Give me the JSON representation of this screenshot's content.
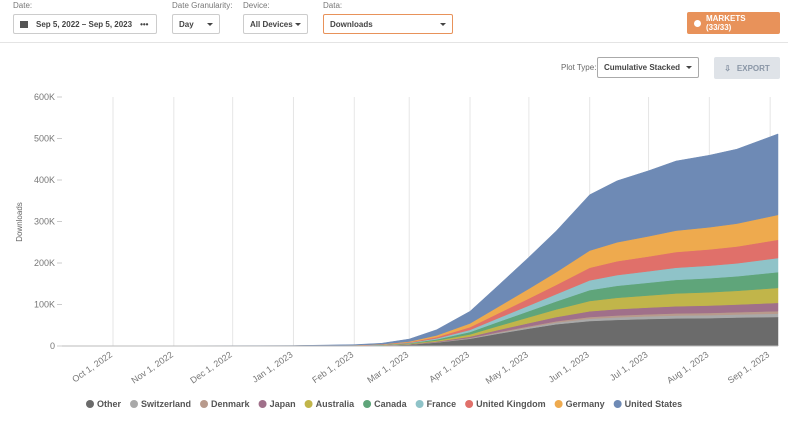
{
  "filters": {
    "date": {
      "label": "Date:",
      "value": "Sep 5, 2022 – Sep 5, 2023",
      "more": "•••"
    },
    "granularity": {
      "label": "Date Granularity:",
      "value": "Day"
    },
    "device": {
      "label": "Device:",
      "value": "All Devices"
    },
    "data": {
      "label": "Data:",
      "value": "Downloads"
    }
  },
  "markets_button": "MARKETS (33/33)",
  "plot_type": {
    "label": "Plot Type:",
    "value": "Cumulative Stacked"
  },
  "export_button": "EXPORT",
  "chart_data": {
    "type": "stacked_area",
    "y_label": "Downloads",
    "grid": "x",
    "x": [
      "2022-09-05",
      "2023-01-01",
      "2023-02-01",
      "2023-02-15",
      "2023-03-01",
      "2023-03-15",
      "2023-04-01",
      "2023-04-15",
      "2023-05-01",
      "2023-05-15",
      "2023-06-01",
      "2023-06-15",
      "2023-07-01",
      "2023-07-15",
      "2023-08-01",
      "2023-08-15",
      "2023-09-05"
    ],
    "xlim": [
      "2022-09-05",
      "2023-09-05"
    ],
    "xticks": [
      {
        "value": "2022-10-01",
        "label": "Oct 1, 2022"
      },
      {
        "value": "2022-11-01",
        "label": "Nov 1, 2022"
      },
      {
        "value": "2022-12-01",
        "label": "Dec 1, 2022"
      },
      {
        "value": "2023-01-01",
        "label": "Jan 1, 2023"
      },
      {
        "value": "2023-02-01",
        "label": "Feb 1, 2023"
      },
      {
        "value": "2023-03-01",
        "label": "Mar 1, 2023"
      },
      {
        "value": "2023-04-01",
        "label": "Apr 1, 2023"
      },
      {
        "value": "2023-05-01",
        "label": "May 1, 2023"
      },
      {
        "value": "2023-06-01",
        "label": "Jun 1, 2023"
      },
      {
        "value": "2023-07-01",
        "label": "Jul 1, 2023"
      },
      {
        "value": "2023-08-01",
        "label": "Aug 1, 2023"
      },
      {
        "value": "2023-09-01",
        "label": "Sep 1, 2023"
      }
    ],
    "ylim": [
      0,
      600000
    ],
    "yticks": [
      0,
      {
        "value": 100000,
        "label": "100K"
      },
      {
        "value": 200000,
        "label": "200K"
      },
      {
        "value": 300000,
        "label": "300K"
      },
      {
        "value": 400000,
        "label": "400K"
      },
      {
        "value": 500000,
        "label": "500K"
      },
      {
        "value": 600000,
        "label": "600K"
      }
    ],
    "series": [
      {
        "name": "Other",
        "color": "#6b6b6b",
        "values": [
          0,
          200,
          700,
          1400,
          3500,
          8400,
          17500,
          29400,
          42000,
          52500,
          60200,
          63000,
          65100,
          66500,
          67200,
          68600,
          70000
        ]
      },
      {
        "name": "Switzerland",
        "color": "#a9a9a9",
        "values": [
          0,
          16,
          48,
          96,
          240,
          560,
          1200,
          2080,
          3120,
          4080,
          5520,
          6080,
          6480,
          6880,
          7120,
          7360,
          8000
        ]
      },
      {
        "name": "Denmark",
        "color": "#b89a8c",
        "values": [
          0,
          12,
          36,
          72,
          180,
          420,
          900,
          1560,
          2340,
          3060,
          4140,
          4560,
          4860,
          5160,
          5340,
          5520,
          6000
        ]
      },
      {
        "name": "Japan",
        "color": "#a0708a",
        "values": [
          0,
          40,
          120,
          240,
          600,
          1400,
          3000,
          5200,
          7800,
          10200,
          13800,
          15200,
          16200,
          17200,
          17800,
          18400,
          20000
        ]
      },
      {
        "name": "Australia",
        "color": "#c1b54a",
        "values": [
          0,
          72,
          216,
          432,
          1080,
          2520,
          5400,
          9360,
          14040,
          18360,
          24840,
          27360,
          29160,
          30960,
          32040,
          33120,
          36000
        ]
      },
      {
        "name": "Canada",
        "color": "#5fa57a",
        "values": [
          0,
          76,
          228,
          456,
          1140,
          2660,
          5700,
          9880,
          14820,
          19380,
          26220,
          28880,
          30780,
          32680,
          33820,
          34960,
          38000
        ]
      },
      {
        "name": "France",
        "color": "#8fc3c8",
        "values": [
          0,
          68,
          204,
          408,
          1020,
          2380,
          5100,
          8840,
          13260,
          17340,
          23460,
          25840,
          27540,
          29240,
          30260,
          31280,
          34000
        ]
      },
      {
        "name": "United Kingdom",
        "color": "#e0706a",
        "values": [
          0,
          88,
          264,
          528,
          1320,
          3080,
          6600,
          11440,
          17160,
          22440,
          30360,
          33440,
          35640,
          37840,
          39160,
          40480,
          44000
        ]
      },
      {
        "name": "Germany",
        "color": "#eeaa4e",
        "values": [
          0,
          120,
          360,
          720,
          1800,
          4200,
          9000,
          15600,
          23400,
          30600,
          41400,
          45600,
          48600,
          51600,
          53400,
          55200,
          60000
        ]
      },
      {
        "name": "United States",
        "color": "#6e8ab5",
        "values": [
          0,
          390,
          1170,
          2340,
          5850,
          13650,
          29250,
          50700,
          76050,
          99450,
          134550,
          148200,
          157950,
          167700,
          173550,
          179400,
          195000
        ]
      }
    ]
  }
}
